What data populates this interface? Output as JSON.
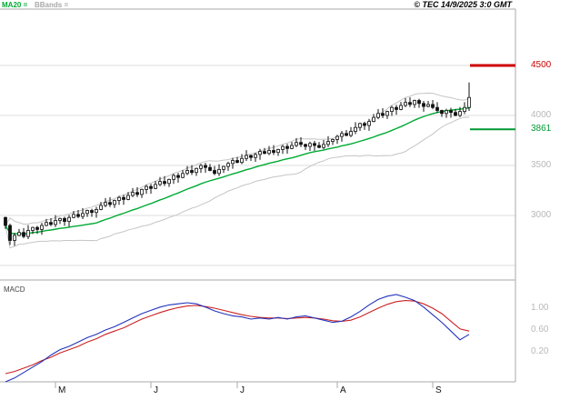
{
  "header": {
    "ma_label": "MA20 =",
    "bbands_label": "BBands =",
    "copyright": "© TEC 14/9/2025 3:0 GMT"
  },
  "chart_data": {
    "type": "candlestick",
    "title": "Daily price chart with MA20, Bollinger Bands and MACD",
    "legend": [
      "MA20",
      "BBands"
    ],
    "price_panel": {
      "ylim": [
        2350,
        5060
      ],
      "gridline_values": [
        4500,
        4000,
        3500,
        3000,
        2500
      ],
      "axis_labels": [
        {
          "text": "4500",
          "value": 4500,
          "color": "#cc0000"
        },
        {
          "text": "4000",
          "value": 4000,
          "color": "#b8b8b8"
        },
        {
          "text": "3861",
          "value": 3861,
          "color": "#009933"
        },
        {
          "text": "3500",
          "value": 3500,
          "color": "#b8b8b8"
        },
        {
          "text": "3000",
          "value": 3000,
          "color": "#b8b8b8"
        }
      ],
      "resistance_level": 4500,
      "support_level": 3861,
      "ma_period": 20,
      "bollinger_stddev": 2,
      "last_candle_high": 4330,
      "closes": [
        2900,
        2750,
        2800,
        2830,
        2790,
        2850,
        2880,
        2860,
        2900,
        2930,
        2910,
        2950,
        2970,
        2940,
        2980,
        3010,
        2990,
        3020,
        3050,
        3030,
        3060,
        3100,
        3130,
        3110,
        3150,
        3180,
        3160,
        3200,
        3230,
        3210,
        3260,
        3290,
        3270,
        3310,
        3340,
        3320,
        3360,
        3400,
        3380,
        3420,
        3450,
        3430,
        3470,
        3500,
        3480,
        3450,
        3420,
        3460,
        3490,
        3520,
        3550,
        3530,
        3570,
        3600,
        3580,
        3610,
        3640,
        3620,
        3650,
        3630,
        3660,
        3690,
        3670,
        3700,
        3730,
        3710,
        3690,
        3720,
        3700,
        3680,
        3710,
        3740,
        3760,
        3790,
        3820,
        3800,
        3840,
        3880,
        3920,
        3900,
        3940,
        3980,
        4020,
        4000,
        4040,
        4080,
        4060,
        4100,
        4130,
        4110,
        4150,
        4120,
        4090,
        4110,
        4080,
        4050,
        4020,
        4050,
        4030,
        4000,
        4040,
        4080,
        4180
      ]
    },
    "macd_panel": {
      "label": "MACD",
      "ylim": [
        -0.5,
        1.45
      ],
      "axis_labels": [
        {
          "text": "1.00",
          "value": 1.0
        },
        {
          "text": "0.60",
          "value": 0.6
        },
        {
          "text": "0.20",
          "value": 0.2
        }
      ],
      "macd_line": {
        "color": "#2233bb",
        "indices": [
          0,
          2,
          4,
          6,
          8,
          10,
          12,
          14,
          16,
          18,
          20,
          22,
          24,
          26,
          28,
          30,
          32,
          34,
          36,
          38,
          40,
          42,
          44,
          46,
          48,
          50,
          52,
          54,
          56,
          58,
          60,
          62,
          64,
          66,
          68,
          70,
          72,
          74,
          76,
          78,
          80,
          82,
          84,
          86,
          88,
          90,
          92,
          94,
          96,
          98,
          100,
          102
        ],
        "values": [
          -0.35,
          -0.28,
          -0.18,
          -0.08,
          0.02,
          0.14,
          0.24,
          0.3,
          0.38,
          0.46,
          0.52,
          0.6,
          0.66,
          0.74,
          0.82,
          0.9,
          0.96,
          1.02,
          1.06,
          1.08,
          1.1,
          1.08,
          1.02,
          0.95,
          0.9,
          0.86,
          0.84,
          0.8,
          0.82,
          0.8,
          0.83,
          0.8,
          0.84,
          0.86,
          0.82,
          0.78,
          0.74,
          0.76,
          0.84,
          0.94,
          1.06,
          1.16,
          1.22,
          1.25,
          1.2,
          1.14,
          1.02,
          0.88,
          0.74,
          0.58,
          0.42,
          0.52
        ]
      },
      "signal_line": {
        "color": "#cc2222",
        "indices": [
          0,
          2,
          4,
          6,
          8,
          10,
          12,
          14,
          16,
          18,
          20,
          22,
          24,
          26,
          28,
          30,
          32,
          34,
          36,
          38,
          40,
          42,
          44,
          46,
          48,
          50,
          52,
          54,
          56,
          58,
          60,
          62,
          64,
          66,
          68,
          70,
          72,
          74,
          76,
          78,
          80,
          82,
          84,
          86,
          88,
          90,
          92,
          94,
          96,
          98,
          100,
          102
        ],
        "values": [
          -0.2,
          -0.16,
          -0.1,
          -0.04,
          0.04,
          0.1,
          0.18,
          0.24,
          0.3,
          0.38,
          0.44,
          0.52,
          0.58,
          0.64,
          0.72,
          0.8,
          0.86,
          0.92,
          0.97,
          1.01,
          1.04,
          1.05,
          1.03,
          1.0,
          0.96,
          0.92,
          0.88,
          0.85,
          0.83,
          0.82,
          0.82,
          0.81,
          0.82,
          0.83,
          0.82,
          0.8,
          0.77,
          0.76,
          0.78,
          0.84,
          0.92,
          1.0,
          1.07,
          1.12,
          1.14,
          1.13,
          1.08,
          1.0,
          0.9,
          0.76,
          0.62,
          0.58
        ]
      }
    },
    "x_axis": {
      "labels": [
        "M",
        "J",
        "J",
        "A",
        "S"
      ],
      "tick_indices": [
        11,
        32,
        51,
        73,
        94
      ]
    },
    "colors": {
      "candle": "#111111",
      "ma20": "#00aa33",
      "bollinger": "#c4c4c4",
      "resistance": "#cc0000",
      "support": "#009933",
      "grid": "#dcdcdc",
      "border": "#aaaaaa",
      "macd": "#2233bb",
      "signal": "#cc2222"
    }
  }
}
